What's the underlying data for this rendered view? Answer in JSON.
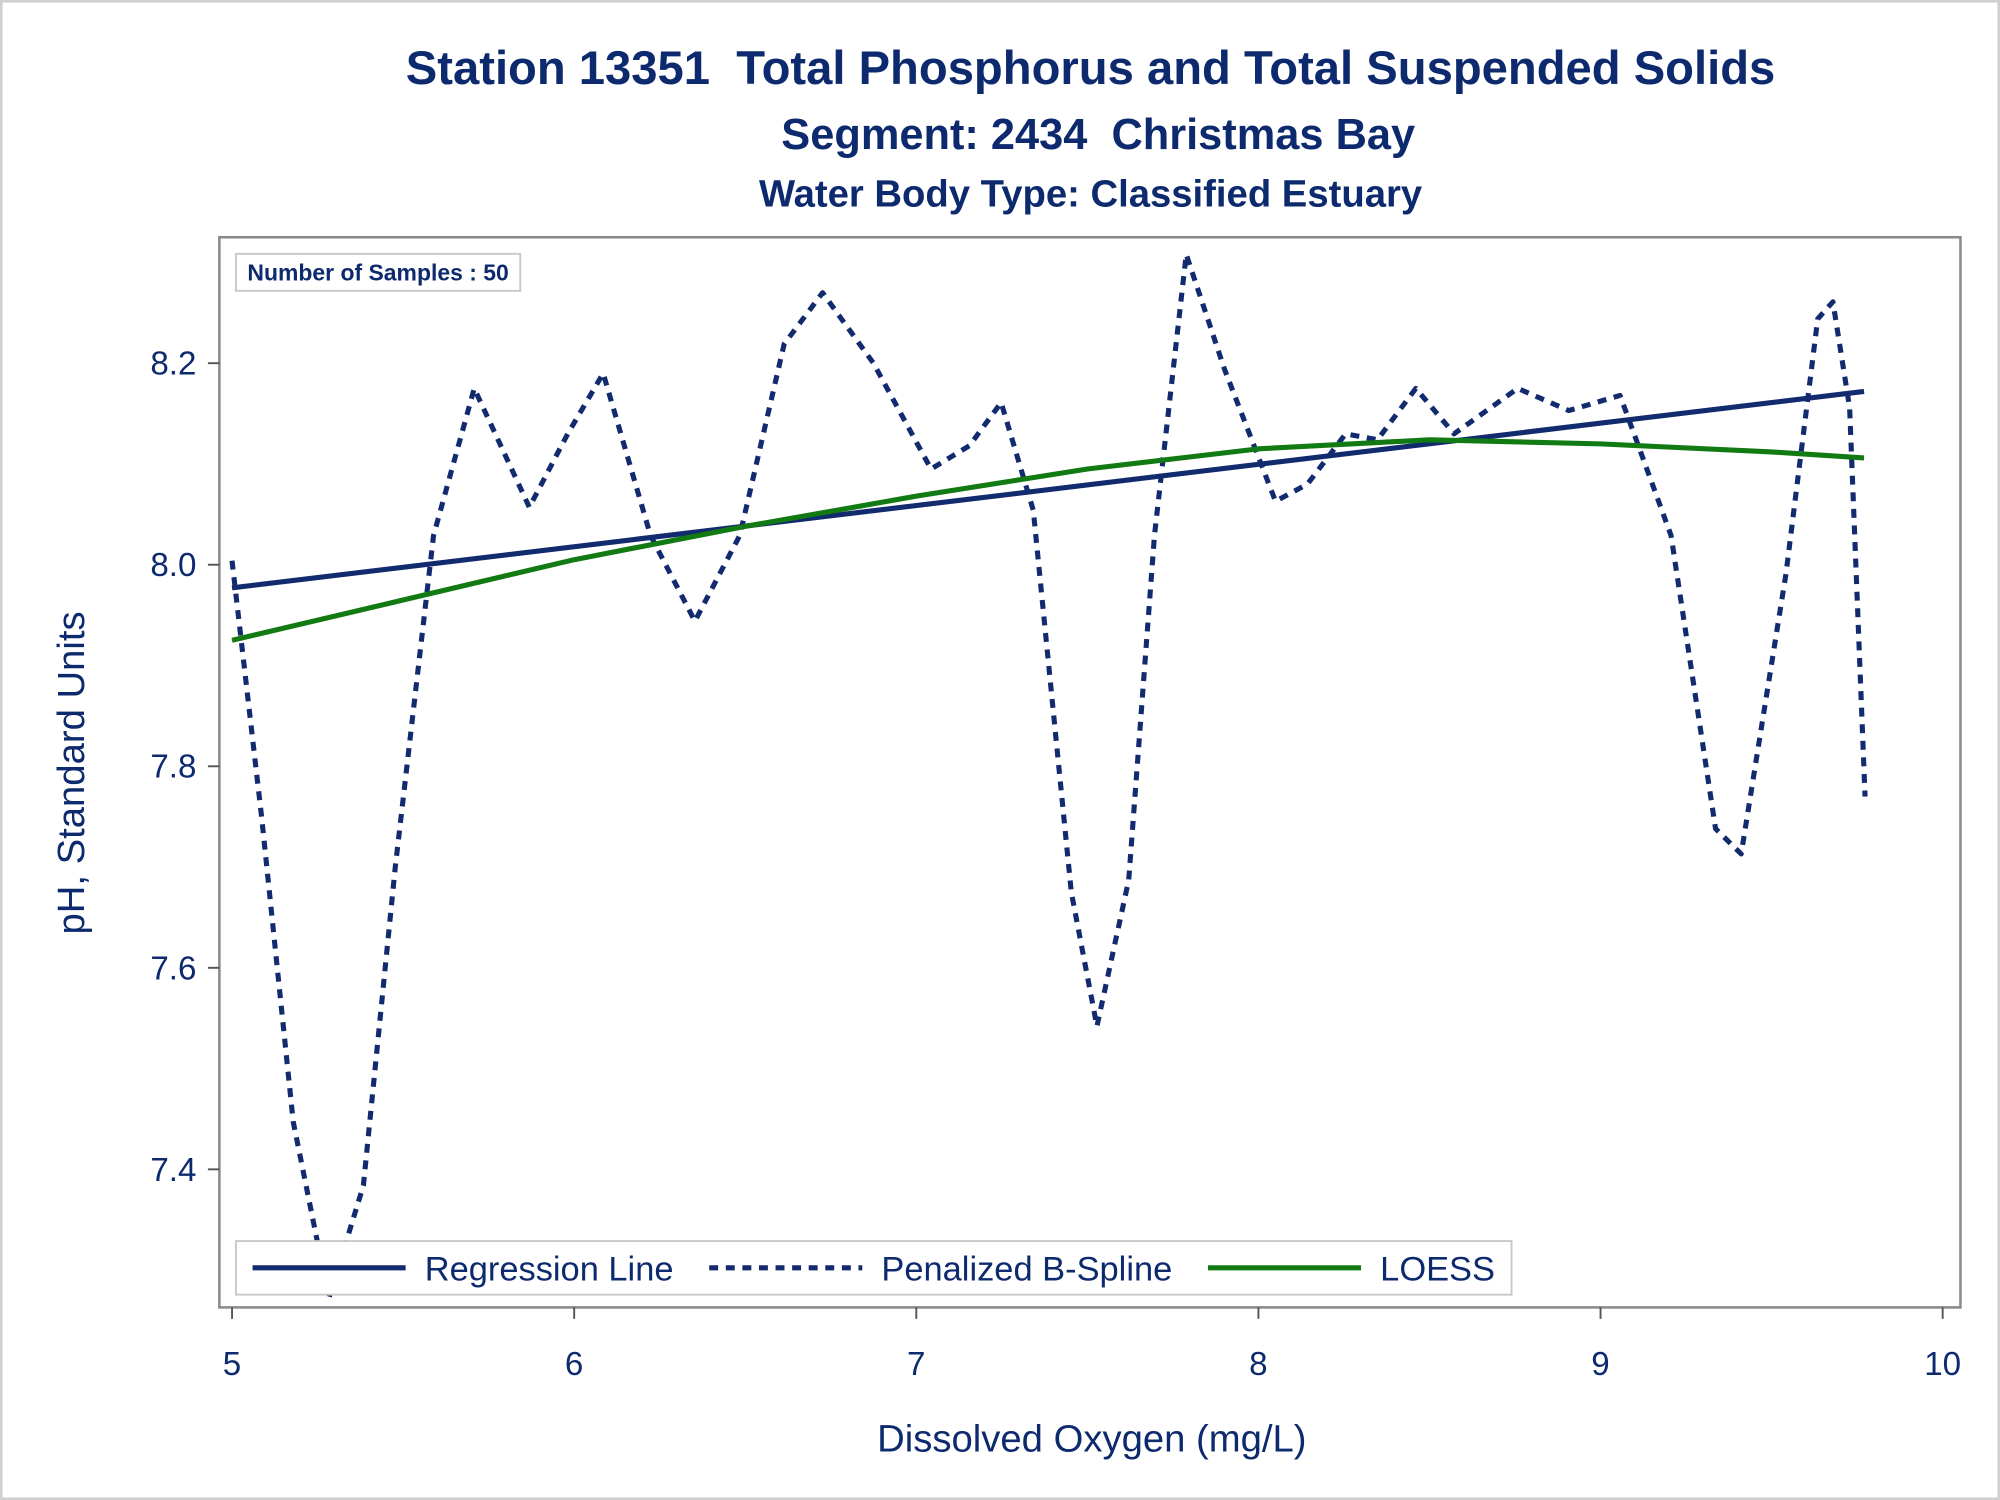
{
  "chart_data": {
    "type": "line",
    "title": "Station 13351  Total Phosphorus and Total Suspended Solids",
    "subtitle": [
      "Segment: 2434  Christmas Bay",
      "Water Body Type: Classified Estuary"
    ],
    "xlabel": "Dissolved Oxygen (mg/L)",
    "ylabel": "pH, Standard Units",
    "annotation": "Number of Samples : 50",
    "xlim": [
      4.963,
      10.052
    ],
    "ylim": [
      7.263,
      8.325
    ],
    "xticks": [
      5,
      6,
      7,
      8,
      9,
      10
    ],
    "yticks": [
      7.4,
      7.6,
      7.8,
      {
        "value": 8,
        "label": "8.0"
      },
      8.2
    ],
    "legend": "lower left",
    "series": [
      {
        "name": "Regression Line",
        "color": "#122a6e",
        "style": "solid",
        "x": [
          5.0,
          9.77
        ],
        "values": [
          7.977,
          8.172
        ]
      },
      {
        "name": "Penalized B-Spline",
        "color": "#122a6e",
        "style": "dashed",
        "x": [
          5.0,
          5.086,
          5.179,
          5.283,
          5.384,
          5.477,
          5.589,
          5.708,
          5.869,
          5.981,
          6.085,
          6.223,
          6.353,
          6.484,
          6.614,
          6.726,
          6.875,
          7.043,
          7.155,
          7.248,
          7.342,
          7.453,
          7.528,
          7.621,
          7.696,
          7.789,
          7.901,
          8.05,
          8.143,
          8.255,
          8.348,
          8.46,
          8.572,
          8.758,
          8.907,
          9.057,
          9.206,
          9.336,
          9.411,
          9.542,
          9.635,
          9.679,
          9.728,
          9.773
        ],
        "values": [
          8.004,
          7.751,
          7.447,
          7.272,
          7.384,
          7.7,
          8.029,
          8.175,
          8.057,
          8.13,
          8.19,
          8.029,
          7.944,
          8.029,
          8.219,
          8.27,
          8.2,
          8.095,
          8.118,
          8.161,
          8.054,
          7.675,
          7.542,
          7.687,
          8.029,
          8.308,
          8.194,
          8.063,
          8.08,
          8.13,
          8.124,
          8.175,
          8.13,
          8.175,
          8.153,
          8.168,
          8.029,
          7.738,
          7.713,
          7.991,
          8.244,
          8.261,
          8.156,
          7.77
        ]
      },
      {
        "name": "LOESS",
        "color": "#127a12",
        "style": "solid",
        "x": [
          5.0,
          5.5,
          6.0,
          6.5,
          7.0,
          7.5,
          8.0,
          8.5,
          9.0,
          9.5,
          9.77
        ],
        "values": [
          7.925,
          7.965,
          8.005,
          8.038,
          8.068,
          8.095,
          8.115,
          8.124,
          8.12,
          8.112,
          8.106
        ]
      }
    ]
  }
}
